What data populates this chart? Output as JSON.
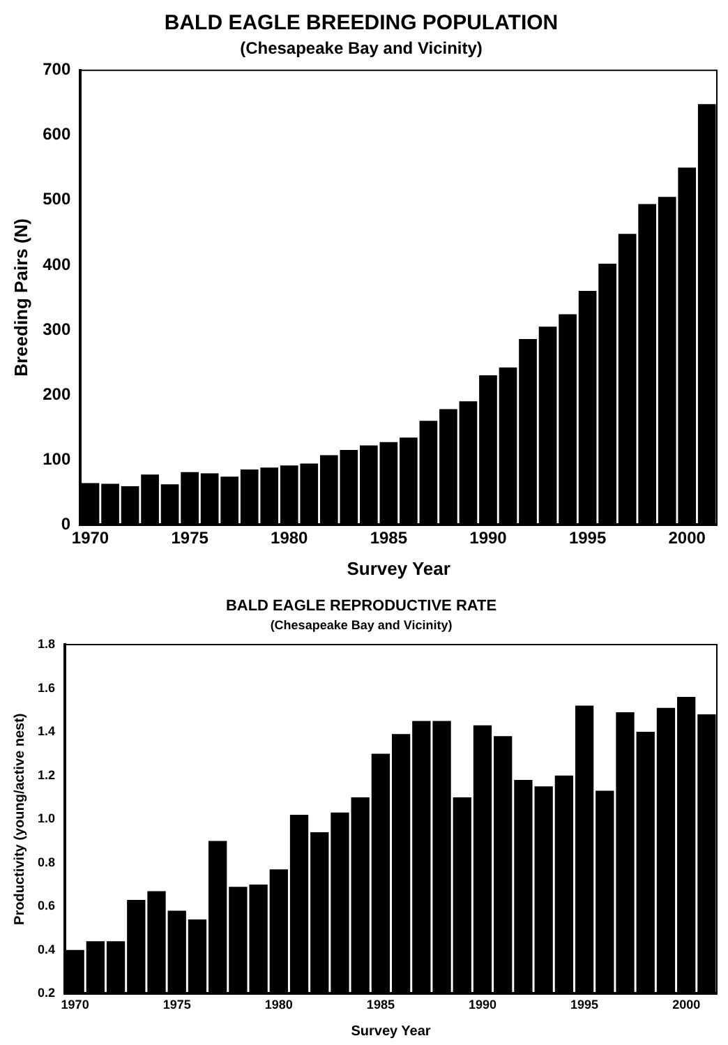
{
  "chart_data": [
    {
      "type": "bar",
      "title": "BALD EAGLE BREEDING POPULATION",
      "subtitle": "(Chesapeake Bay and Vicinity)",
      "xlabel": "Survey Year",
      "ylabel": "Breeding Pairs (N)",
      "categories": [
        "1970",
        null,
        null,
        null,
        null,
        "1975",
        null,
        null,
        null,
        null,
        "1980",
        null,
        null,
        null,
        null,
        "1985",
        null,
        null,
        null,
        null,
        "1990",
        null,
        null,
        null,
        null,
        "1995",
        null,
        null,
        null,
        null,
        "2000",
        null
      ],
      "values": [
        64,
        63,
        59,
        77,
        62,
        81,
        79,
        74,
        85,
        88,
        91,
        94,
        107,
        115,
        122,
        127,
        134,
        160,
        178,
        190,
        230,
        242,
        286,
        305,
        324,
        360,
        402,
        448,
        494,
        505,
        550,
        648
      ],
      "color": "#000000",
      "ylim": [
        0,
        700
      ],
      "yticks": [
        0,
        100,
        200,
        300,
        400,
        500,
        600,
        700
      ],
      "grid": false
    },
    {
      "type": "bar",
      "title": "BALD EAGLE REPRODUCTIVE RATE",
      "subtitle": "(Chesapeake Bay and Vicinity)",
      "xlabel": "Survey Year",
      "ylabel": "Productivity (young/active nest)",
      "categories": [
        "1970",
        null,
        null,
        null,
        null,
        "1975",
        null,
        null,
        null,
        null,
        "1980",
        null,
        null,
        null,
        null,
        "1985",
        null,
        null,
        null,
        null,
        "1990",
        null,
        null,
        null,
        null,
        "1995",
        null,
        null,
        null,
        null,
        "2000",
        null
      ],
      "values": [
        0.4,
        0.44,
        0.44,
        0.63,
        0.67,
        0.58,
        0.54,
        0.9,
        0.69,
        0.7,
        0.77,
        1.02,
        0.94,
        1.03,
        1.1,
        1.3,
        1.39,
        1.45,
        1.45,
        1.1,
        1.43,
        1.38,
        1.18,
        1.15,
        1.2,
        1.52,
        1.13,
        1.49,
        1.4,
        1.51,
        1.56,
        1.48
      ],
      "color": "#000000",
      "ylim": [
        0.2,
        1.8
      ],
      "yticks": [
        0.2,
        0.4,
        0.6,
        0.8,
        {
          "value": 1,
          "label": "1.0"
        },
        1.2,
        1.4,
        1.6,
        1.8
      ],
      "grid": false
    }
  ]
}
